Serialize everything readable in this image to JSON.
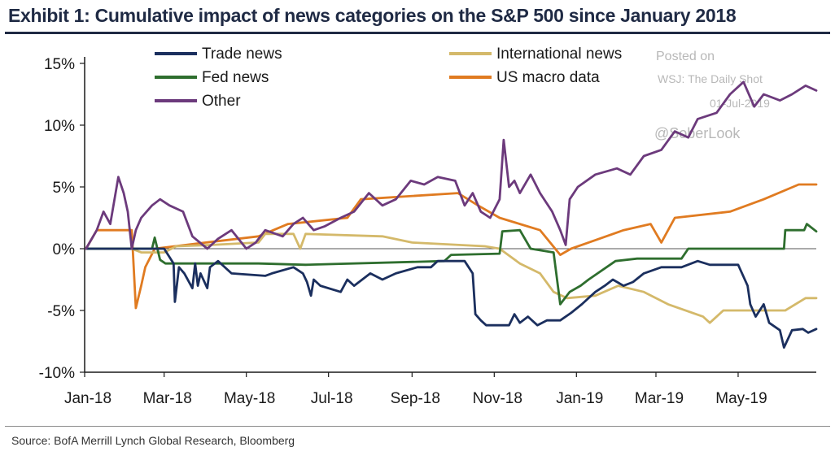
{
  "title": "Exhibit 1: Cumulative impact of news categories on the S&P 500 since January 2018",
  "source": "Source:  BofA Merrill Lynch Global Research, Bloomberg",
  "watermark": {
    "line1": "Posted on",
    "line2": "WSJ: The Daily Shot",
    "line3": "01-Jul-2019",
    "line4": "@SoberLook"
  },
  "chart_data": {
    "type": "line",
    "title": "Exhibit 1: Cumulative impact of news categories on the S&P 500 since January 2018",
    "xlabel": "",
    "ylabel": "",
    "x_ticks": [
      "Jan-18",
      "Mar-18",
      "May-18",
      "Jul-18",
      "Sep-18",
      "Nov-18",
      "Jan-19",
      "Mar-19",
      "May-19"
    ],
    "x_range": [
      "2018-01-01",
      "2019-06-28"
    ],
    "y_ticks": [
      "15%",
      "10%",
      "5%",
      "0%",
      "-5%",
      "-10%"
    ],
    "ylim": [
      -10,
      15
    ],
    "y_unit": "%",
    "zero_line": true,
    "grid": false,
    "legend": "top",
    "series": [
      {
        "name": "Trade news",
        "color": "#1b2f5e",
        "points": [
          [
            "2018-01-02",
            0
          ],
          [
            "2018-03-01",
            0
          ],
          [
            "2018-03-08",
            -1.2
          ],
          [
            "2018-03-09",
            -4.3
          ],
          [
            "2018-03-12",
            -1.5
          ],
          [
            "2018-03-16",
            -2.0
          ],
          [
            "2018-03-22",
            -3.2
          ],
          [
            "2018-03-24",
            -1.2
          ],
          [
            "2018-03-26",
            -3.0
          ],
          [
            "2018-03-28",
            -2.0
          ],
          [
            "2018-04-02",
            -3.2
          ],
          [
            "2018-04-04",
            -1.5
          ],
          [
            "2018-04-10",
            -1.0
          ],
          [
            "2018-04-20",
            -2.0
          ],
          [
            "2018-05-15",
            -2.2
          ],
          [
            "2018-05-20",
            -2.0
          ],
          [
            "2018-06-05",
            -1.5
          ],
          [
            "2018-06-12",
            -2.0
          ],
          [
            "2018-06-15",
            -2.7
          ],
          [
            "2018-06-18",
            -3.8
          ],
          [
            "2018-06-20",
            -2.5
          ],
          [
            "2018-06-25",
            -3.0
          ],
          [
            "2018-07-10",
            -3.5
          ],
          [
            "2018-07-15",
            -2.5
          ],
          [
            "2018-07-20",
            -3.0
          ],
          [
            "2018-08-01",
            -2.0
          ],
          [
            "2018-08-10",
            -2.5
          ],
          [
            "2018-08-20",
            -2.0
          ],
          [
            "2018-09-05",
            -1.5
          ],
          [
            "2018-09-15",
            -1.5
          ],
          [
            "2018-09-20",
            -1.0
          ],
          [
            "2018-10-10",
            -1.0
          ],
          [
            "2018-10-16",
            -2.0
          ],
          [
            "2018-10-18",
            -5.3
          ],
          [
            "2018-10-22",
            -5.8
          ],
          [
            "2018-10-26",
            -6.2
          ],
          [
            "2018-11-12",
            -6.2
          ],
          [
            "2018-11-16",
            -5.3
          ],
          [
            "2018-11-20",
            -6.0
          ],
          [
            "2018-11-26",
            -5.5
          ],
          [
            "2018-12-03",
            -6.2
          ],
          [
            "2018-12-10",
            -5.8
          ],
          [
            "2018-12-20",
            -5.8
          ],
          [
            "2018-12-28",
            -5.2
          ],
          [
            "2019-01-05",
            -4.5
          ],
          [
            "2019-01-15",
            -3.5
          ],
          [
            "2019-01-22",
            -3.0
          ],
          [
            "2019-01-28",
            -2.5
          ],
          [
            "2019-02-05",
            -3.0
          ],
          [
            "2019-02-12",
            -2.7
          ],
          [
            "2019-02-20",
            -2.0
          ],
          [
            "2019-03-05",
            -1.5
          ],
          [
            "2019-03-20",
            -1.5
          ],
          [
            "2019-04-01",
            -1.0
          ],
          [
            "2019-04-10",
            -1.3
          ],
          [
            "2019-05-01",
            -1.3
          ],
          [
            "2019-05-08",
            -3.0
          ],
          [
            "2019-05-10",
            -4.5
          ],
          [
            "2019-05-14",
            -5.5
          ],
          [
            "2019-05-20",
            -4.5
          ],
          [
            "2019-05-24",
            -6.0
          ],
          [
            "2019-06-01",
            -6.6
          ],
          [
            "2019-06-04",
            -8.0
          ],
          [
            "2019-06-10",
            -6.6
          ],
          [
            "2019-06-18",
            -6.5
          ],
          [
            "2019-06-22",
            -6.8
          ],
          [
            "2019-06-28",
            -6.5
          ]
        ]
      },
      {
        "name": "Fed news",
        "color": "#2e6e2e",
        "points": [
          [
            "2018-01-02",
            0
          ],
          [
            "2018-02-20",
            0
          ],
          [
            "2018-02-22",
            0.9
          ],
          [
            "2018-02-26",
            -0.9
          ],
          [
            "2018-03-02",
            -1.2
          ],
          [
            "2018-05-10",
            -1.2
          ],
          [
            "2018-06-14",
            -1.3
          ],
          [
            "2018-09-25",
            -1.0
          ],
          [
            "2018-09-30",
            -0.5
          ],
          [
            "2018-11-05",
            -0.4
          ],
          [
            "2018-11-07",
            1.4
          ],
          [
            "2018-11-20",
            1.5
          ],
          [
            "2018-11-28",
            0.0
          ],
          [
            "2018-12-15",
            -0.3
          ],
          [
            "2018-12-20",
            -4.5
          ],
          [
            "2018-12-27",
            -3.5
          ],
          [
            "2019-01-04",
            -3.0
          ],
          [
            "2019-01-10",
            -2.5
          ],
          [
            "2019-01-30",
            -1.0
          ],
          [
            "2019-02-15",
            -0.8
          ],
          [
            "2019-03-20",
            -0.8
          ],
          [
            "2019-03-25",
            0.0
          ],
          [
            "2019-04-10",
            0.0
          ],
          [
            "2019-06-04",
            0.0
          ],
          [
            "2019-06-05",
            1.5
          ],
          [
            "2019-06-19",
            1.5
          ],
          [
            "2019-06-21",
            2.0
          ],
          [
            "2019-06-28",
            1.4
          ]
        ]
      },
      {
        "name": "Other",
        "color": "#6c3a7c",
        "points": [
          [
            "2018-01-02",
            0
          ],
          [
            "2018-01-10",
            1.5
          ],
          [
            "2018-01-15",
            3.0
          ],
          [
            "2018-01-20",
            2.0
          ],
          [
            "2018-01-26",
            5.8
          ],
          [
            "2018-01-30",
            4.5
          ],
          [
            "2018-02-02",
            3.0
          ],
          [
            "2018-02-05",
            0.0
          ],
          [
            "2018-02-08",
            1.5
          ],
          [
            "2018-02-12",
            2.5
          ],
          [
            "2018-02-20",
            3.5
          ],
          [
            "2018-02-26",
            4.0
          ],
          [
            "2018-03-05",
            3.5
          ],
          [
            "2018-03-15",
            3.0
          ],
          [
            "2018-03-22",
            1.0
          ],
          [
            "2018-04-02",
            0.0
          ],
          [
            "2018-04-10",
            0.8
          ],
          [
            "2018-04-20",
            1.5
          ],
          [
            "2018-05-01",
            0.0
          ],
          [
            "2018-05-08",
            0.5
          ],
          [
            "2018-05-15",
            1.5
          ],
          [
            "2018-05-28",
            1.0
          ],
          [
            "2018-06-05",
            2.0
          ],
          [
            "2018-06-12",
            2.5
          ],
          [
            "2018-06-20",
            1.5
          ],
          [
            "2018-06-28",
            1.8
          ],
          [
            "2018-07-10",
            2.5
          ],
          [
            "2018-07-20",
            3.0
          ],
          [
            "2018-07-31",
            4.5
          ],
          [
            "2018-08-10",
            3.5
          ],
          [
            "2018-08-20",
            4.0
          ],
          [
            "2018-08-31",
            5.5
          ],
          [
            "2018-09-10",
            5.2
          ],
          [
            "2018-09-20",
            5.8
          ],
          [
            "2018-10-03",
            5.5
          ],
          [
            "2018-10-10",
            3.5
          ],
          [
            "2018-10-16",
            4.5
          ],
          [
            "2018-10-22",
            3.0
          ],
          [
            "2018-10-29",
            2.5
          ],
          [
            "2018-11-05",
            4.0
          ],
          [
            "2018-11-08",
            8.8
          ],
          [
            "2018-11-12",
            5.0
          ],
          [
            "2018-11-16",
            5.5
          ],
          [
            "2018-11-20",
            4.5
          ],
          [
            "2018-11-28",
            6.0
          ],
          [
            "2018-12-05",
            4.5
          ],
          [
            "2018-12-14",
            3.0
          ],
          [
            "2018-12-20",
            1.5
          ],
          [
            "2018-12-24",
            0.3
          ],
          [
            "2018-12-27",
            4.0
          ],
          [
            "2019-01-02",
            5.0
          ],
          [
            "2019-01-15",
            6.0
          ],
          [
            "2019-01-31",
            6.5
          ],
          [
            "2019-02-10",
            6.0
          ],
          [
            "2019-02-20",
            7.5
          ],
          [
            "2019-03-05",
            8.0
          ],
          [
            "2019-03-15",
            9.5
          ],
          [
            "2019-03-25",
            9.0
          ],
          [
            "2019-04-01",
            10.5
          ],
          [
            "2019-04-15",
            11.0
          ],
          [
            "2019-04-25",
            12.5
          ],
          [
            "2019-05-05",
            13.5
          ],
          [
            "2019-05-13",
            11.5
          ],
          [
            "2019-05-20",
            12.5
          ],
          [
            "2019-06-01",
            12.0
          ],
          [
            "2019-06-10",
            12.5
          ],
          [
            "2019-06-20",
            13.2
          ],
          [
            "2019-06-28",
            12.8
          ]
        ]
      },
      {
        "name": "International news",
        "color": "#d4b96a",
        "points": [
          [
            "2018-01-02",
            0
          ],
          [
            "2018-02-05",
            0
          ],
          [
            "2018-02-12",
            -0.3
          ],
          [
            "2018-03-01",
            -0.3
          ],
          [
            "2018-03-10",
            0.2
          ],
          [
            "2018-04-05",
            0.3
          ],
          [
            "2018-05-10",
            0.5
          ],
          [
            "2018-05-15",
            1.2
          ],
          [
            "2018-06-05",
            1.2
          ],
          [
            "2018-06-10",
            0.0
          ],
          [
            "2018-06-14",
            1.2
          ],
          [
            "2018-08-10",
            1.0
          ],
          [
            "2018-09-01",
            0.5
          ],
          [
            "2018-10-25",
            0.2
          ],
          [
            "2018-11-05",
            0.0
          ],
          [
            "2018-11-20",
            -1.2
          ],
          [
            "2018-12-05",
            -2.0
          ],
          [
            "2018-12-15",
            -3.5
          ],
          [
            "2018-12-25",
            -4.0
          ],
          [
            "2019-01-15",
            -3.8
          ],
          [
            "2019-02-01",
            -3.0
          ],
          [
            "2019-02-20",
            -3.5
          ],
          [
            "2019-03-10",
            -4.5
          ],
          [
            "2019-04-05",
            -5.5
          ],
          [
            "2019-04-10",
            -6.0
          ],
          [
            "2019-04-20",
            -5.0
          ],
          [
            "2019-06-05",
            -5.0
          ],
          [
            "2019-06-20",
            -4.0
          ],
          [
            "2019-06-28",
            -4.0
          ]
        ]
      },
      {
        "name": "US macro data",
        "color": "#e07b21",
        "points": [
          [
            "2018-01-02",
            0
          ],
          [
            "2018-01-10",
            1.5
          ],
          [
            "2018-02-05",
            1.5
          ],
          [
            "2018-02-08",
            -4.8
          ],
          [
            "2018-02-12",
            -3.0
          ],
          [
            "2018-02-15",
            -1.5
          ],
          [
            "2018-02-22",
            0.0
          ],
          [
            "2018-04-01",
            0.5
          ],
          [
            "2018-05-10",
            1.0
          ],
          [
            "2018-06-01",
            2.0
          ],
          [
            "2018-07-15",
            2.5
          ],
          [
            "2018-07-25",
            4.0
          ],
          [
            "2018-10-05",
            4.5
          ],
          [
            "2018-10-20",
            3.5
          ],
          [
            "2018-11-05",
            2.5
          ],
          [
            "2018-11-20",
            2.0
          ],
          [
            "2018-12-05",
            1.5
          ],
          [
            "2018-12-20",
            -0.5
          ],
          [
            "2018-12-28",
            0.0
          ],
          [
            "2019-01-10",
            0.5
          ],
          [
            "2019-02-05",
            1.5
          ],
          [
            "2019-02-25",
            2.0
          ],
          [
            "2019-03-05",
            0.5
          ],
          [
            "2019-03-15",
            2.5
          ],
          [
            "2019-04-25",
            3.0
          ],
          [
            "2019-05-20",
            4.0
          ],
          [
            "2019-06-15",
            5.2
          ],
          [
            "2019-06-28",
            5.2
          ]
        ]
      }
    ],
    "legend_layout": [
      [
        "Trade news",
        "International news"
      ],
      [
        "Fed news",
        "US macro data"
      ],
      [
        "Other"
      ]
    ]
  }
}
